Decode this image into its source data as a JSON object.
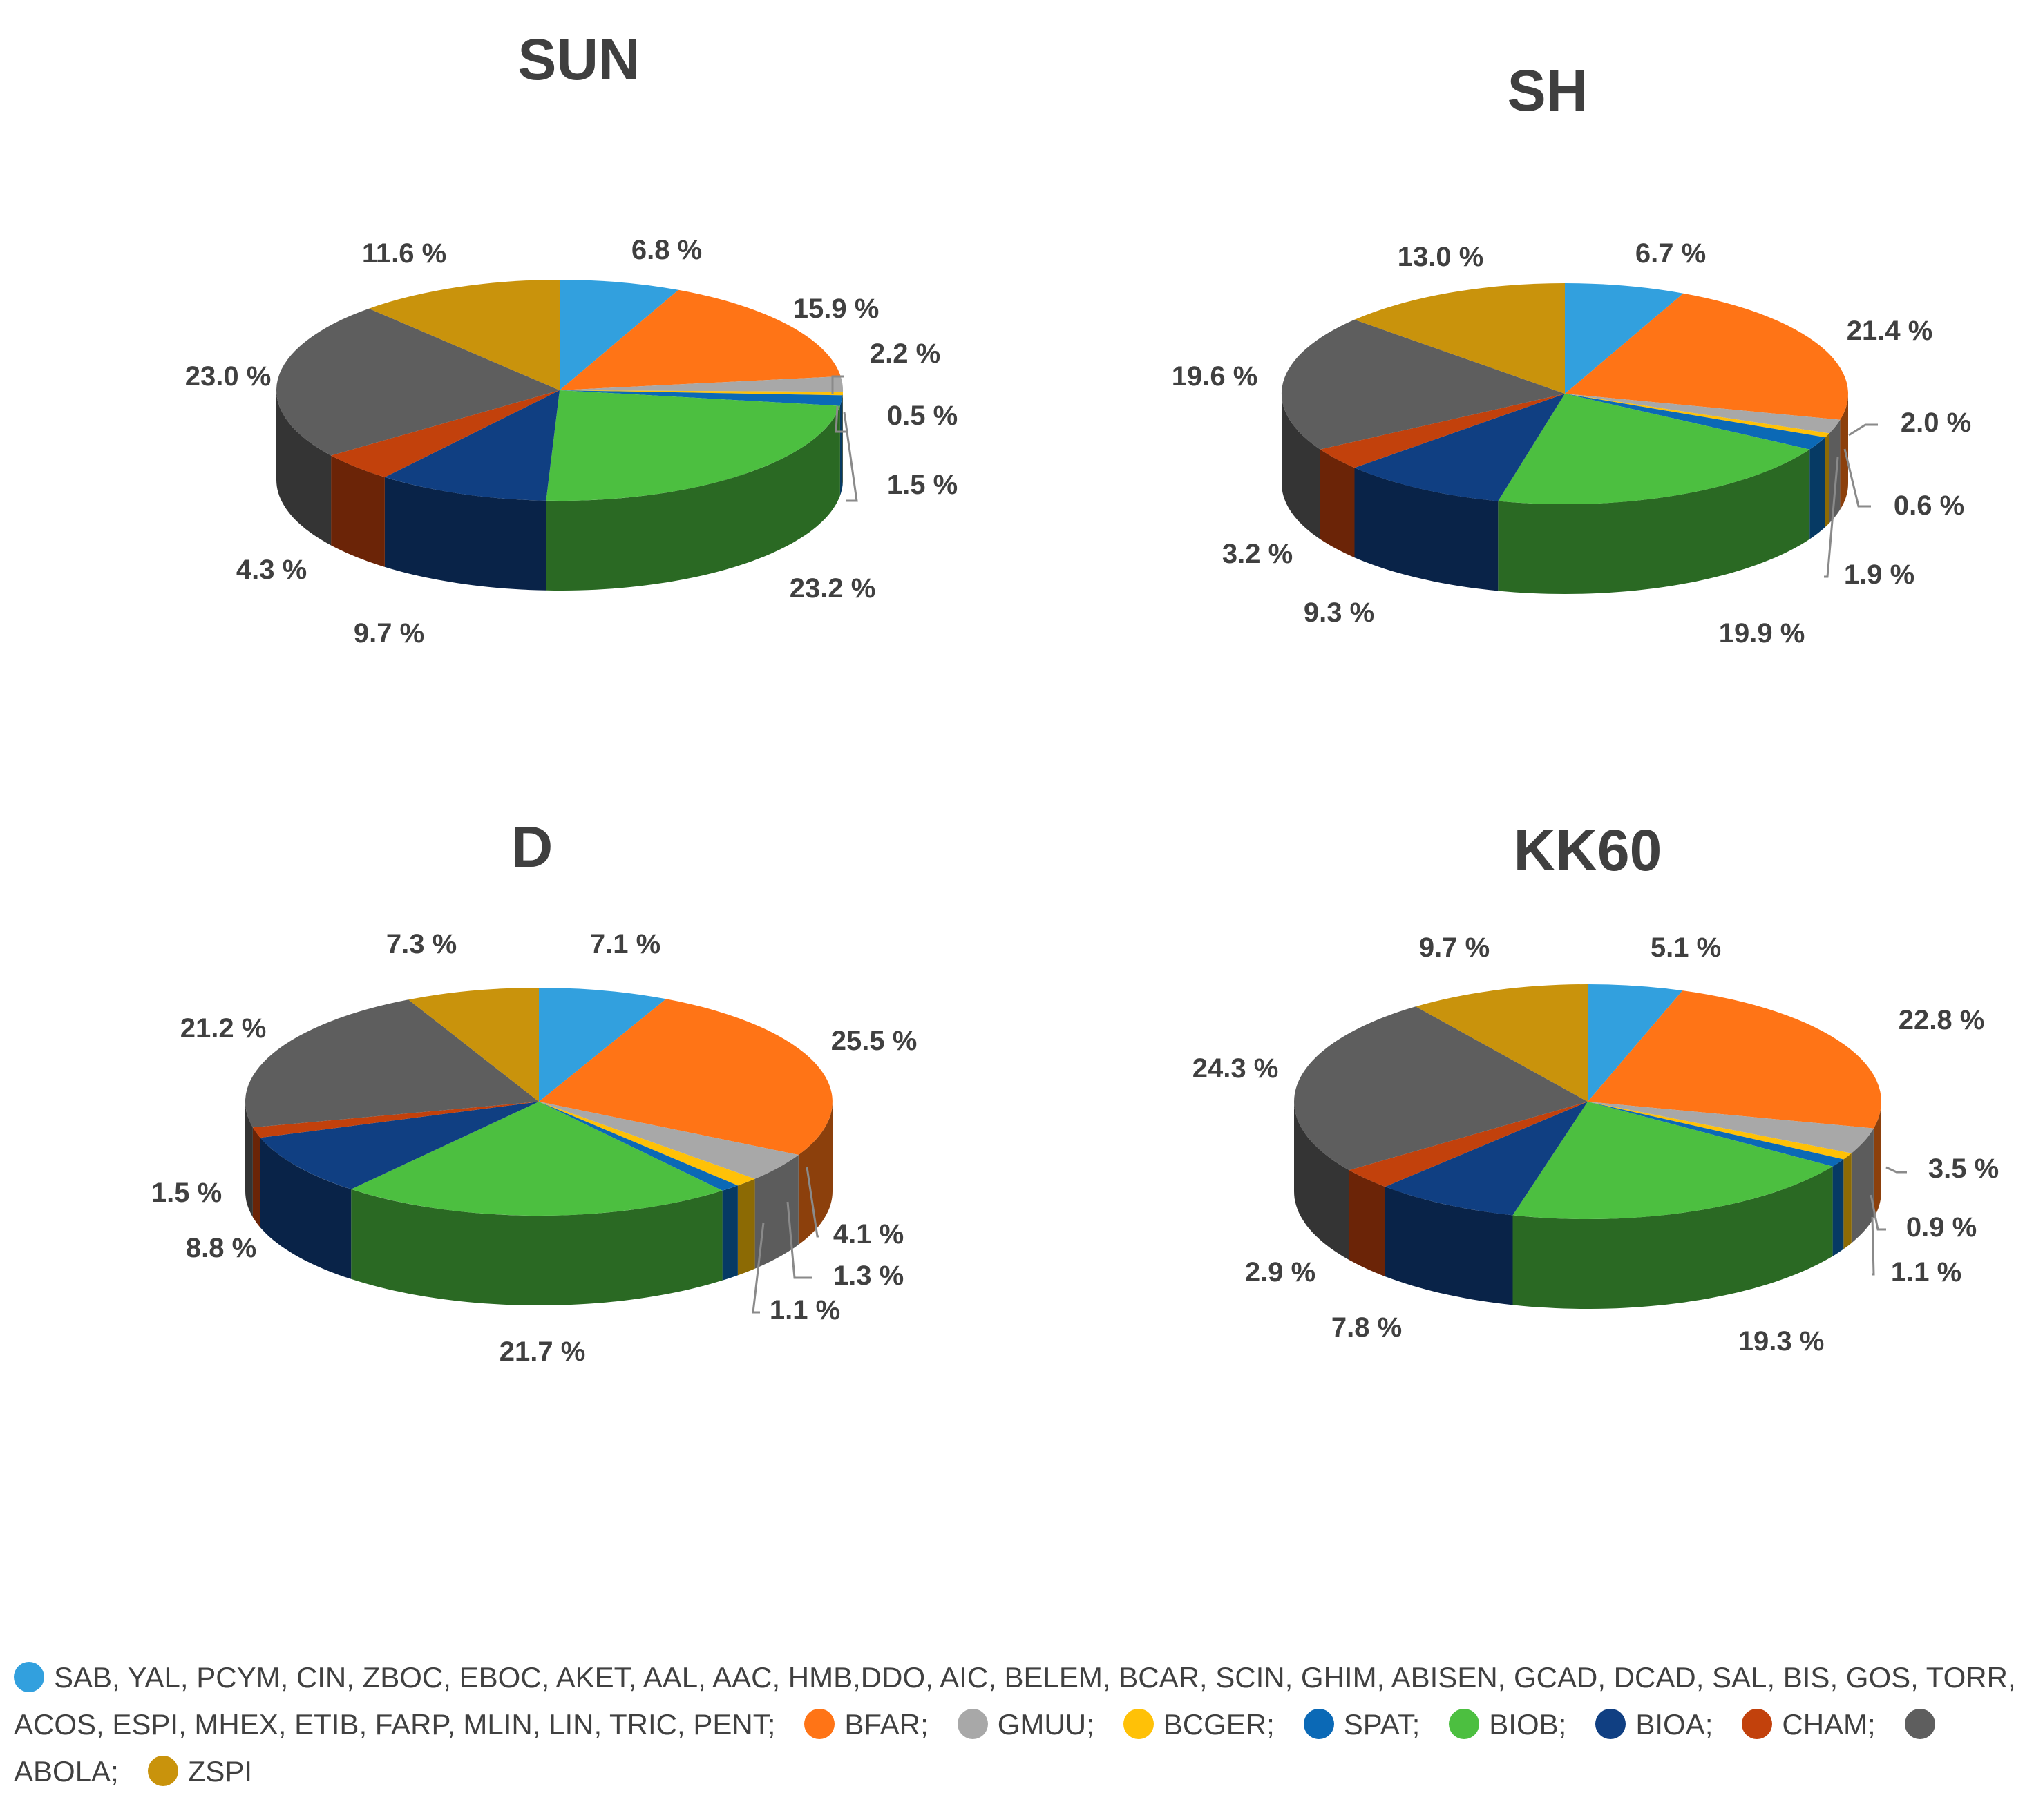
{
  "colors": {
    "SAB": "#32a0de",
    "BFAR": "#ff7416",
    "GMUU": "#a8a8a8",
    "BCGER": "#ffc107",
    "SPAT": "#0b69b6",
    "BIOB": "#4cbf40",
    "BIOA": "#103f82",
    "CHAM": "#c2410c",
    "ABOLA": "#5e5e5e",
    "ZSPI": "#c9930c"
  },
  "chart_data": [
    {
      "type": "pie",
      "title": "SUN",
      "categories": [
        "SAB",
        "BFAR",
        "GMUU",
        "BCGER",
        "SPAT",
        "BIOB",
        "BIOA",
        "CHAM",
        "ABOLA",
        "ZSPI"
      ],
      "values": [
        6.8,
        15.9,
        2.2,
        0.5,
        1.5,
        23.2,
        9.7,
        4.3,
        23.0,
        11.6
      ],
      "labels": [
        "6.8 %",
        "15.9 %",
        "2.2 %",
        "0.5 %",
        "1.5 %",
        "23.2 %",
        "9.7 %",
        "4.3 %",
        "23.0 %",
        "11.6 %"
      ]
    },
    {
      "type": "pie",
      "title": "SH",
      "categories": [
        "SAB",
        "BFAR",
        "GMUU",
        "BCGER",
        "SPAT",
        "BIOB",
        "BIOA",
        "CHAM",
        "ABOLA",
        "ZSPI"
      ],
      "values": [
        6.7,
        21.4,
        2.0,
        0.6,
        1.9,
        19.9,
        9.3,
        3.2,
        19.6,
        13.0
      ],
      "labels": [
        "6.7 %",
        "21.4 %",
        "2.0 %",
        "0.6 %",
        "1.9 %",
        "19.9 %",
        "9.3 %",
        "3.2 %",
        "19.6 %",
        "13.0 %"
      ]
    },
    {
      "type": "pie",
      "title": "D",
      "categories": [
        "SAB",
        "BFAR",
        "GMUU",
        "BCGER",
        "SPAT",
        "BIOB",
        "BIOA",
        "CHAM",
        "ABOLA",
        "ZSPI"
      ],
      "values": [
        7.1,
        25.5,
        4.1,
        1.3,
        1.1,
        21.7,
        8.8,
        1.5,
        21.2,
        7.3
      ],
      "labels": [
        "7.1 %",
        "25.5 %",
        "4.1 %",
        "1.3 %",
        "1.1 %",
        "21.7 %",
        "8.8 %",
        "1.5 %",
        "21.2 %",
        "7.3 %"
      ]
    },
    {
      "type": "pie",
      "title": "KK60",
      "categories": [
        "SAB",
        "BFAR",
        "GMUU",
        "BCGER",
        "SPAT",
        "BIOB",
        "BIOA",
        "CHAM",
        "ABOLA",
        "ZSPI"
      ],
      "values": [
        5.1,
        22.8,
        3.5,
        0.9,
        1.1,
        19.3,
        7.8,
        2.9,
        24.3,
        9.7
      ],
      "labels": [
        "5.1 %",
        "22.8 %",
        "3.5 %",
        "0.9 %",
        "1.1 %",
        "19.3 %",
        "7.8 %",
        "2.9 %",
        "24.3 %",
        "9.7 %"
      ]
    }
  ],
  "legend": {
    "items": [
      {
        "key": "SAB",
        "label": "SAB, YAL, PCYM, CIN, ZBOC, EBOC, AKET, AAL, AAC, HMB,DDO, AIC, BELEM, BCAR, SCIN, GHIM, ABISEN, GCAD, DCAD, SAL, BIS, GOS, TORR, ACOS, ESPI, MHEX, ETIB, FARP, MLIN, LIN, TRIC, PENT;"
      },
      {
        "key": "BFAR",
        "label": "BFAR;"
      },
      {
        "key": "GMUU",
        "label": "GMUU;"
      },
      {
        "key": "BCGER",
        "label": "BCGER;"
      },
      {
        "key": "SPAT",
        "label": "SPAT;"
      },
      {
        "key": "BIOB",
        "label": "BIOB;"
      },
      {
        "key": "BIOA",
        "label": "BIOA;"
      },
      {
        "key": "CHAM",
        "label": "CHAM;"
      },
      {
        "key": "ABOLA",
        "label": "ABOLA;"
      },
      {
        "key": "ZSPI",
        "label": "ZSPI"
      }
    ]
  }
}
